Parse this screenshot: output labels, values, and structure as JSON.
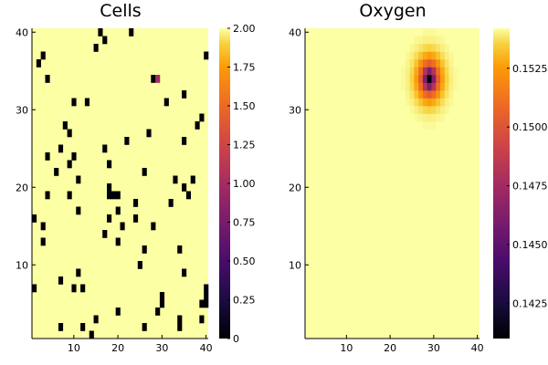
{
  "chart_data": [
    {
      "type": "heatmap",
      "title": "Cells",
      "xlabel": "",
      "ylabel": "",
      "xlim": [
        0.5,
        40.5
      ],
      "ylim": [
        0.5,
        40.5
      ],
      "x_ticks": [
        10,
        20,
        30,
        40
      ],
      "y_ticks": [
        10,
        20,
        30,
        40
      ],
      "colorbar": {
        "colormap": "inferno",
        "range": [
          0,
          2
        ],
        "ticks": [
          0,
          0.25,
          0.5,
          0.75,
          1.0,
          1.25,
          1.5,
          1.75,
          2.0
        ],
        "tick_labels": [
          "0",
          "0.25",
          "0.50",
          "0.75",
          "1.00",
          "1.25",
          "1.50",
          "1.75",
          "2.00"
        ]
      },
      "background_value": 2,
      "cells": [
        {
          "x": 16,
          "y": 40,
          "value": 0
        },
        {
          "x": 23,
          "y": 40,
          "value": 0
        },
        {
          "x": 17,
          "y": 39,
          "value": 0
        },
        {
          "x": 15,
          "y": 38,
          "value": 0
        },
        {
          "x": 3,
          "y": 37,
          "value": 0
        },
        {
          "x": 40,
          "y": 37,
          "value": 0
        },
        {
          "x": 2,
          "y": 36,
          "value": 0
        },
        {
          "x": 4,
          "y": 34,
          "value": 0
        },
        {
          "x": 28,
          "y": 34,
          "value": 0
        },
        {
          "x": 29,
          "y": 34,
          "value": 1
        },
        {
          "x": 35,
          "y": 32,
          "value": 0
        },
        {
          "x": 10,
          "y": 31,
          "value": 0
        },
        {
          "x": 13,
          "y": 31,
          "value": 0
        },
        {
          "x": 31,
          "y": 31,
          "value": 0
        },
        {
          "x": 39,
          "y": 29,
          "value": 0
        },
        {
          "x": 8,
          "y": 28,
          "value": 0
        },
        {
          "x": 38,
          "y": 28,
          "value": 0
        },
        {
          "x": 9,
          "y": 27,
          "value": 0
        },
        {
          "x": 27,
          "y": 27,
          "value": 0
        },
        {
          "x": 22,
          "y": 26,
          "value": 0
        },
        {
          "x": 35,
          "y": 26,
          "value": 0
        },
        {
          "x": 7,
          "y": 25,
          "value": 0
        },
        {
          "x": 17,
          "y": 25,
          "value": 0
        },
        {
          "x": 4,
          "y": 24,
          "value": 0
        },
        {
          "x": 10,
          "y": 24,
          "value": 0
        },
        {
          "x": 9,
          "y": 23,
          "value": 0
        },
        {
          "x": 18,
          "y": 23,
          "value": 0
        },
        {
          "x": 6,
          "y": 22,
          "value": 0
        },
        {
          "x": 26,
          "y": 22,
          "value": 0
        },
        {
          "x": 11,
          "y": 21,
          "value": 0
        },
        {
          "x": 33,
          "y": 21,
          "value": 0
        },
        {
          "x": 37,
          "y": 21,
          "value": 0
        },
        {
          "x": 35,
          "y": 20,
          "value": 0
        },
        {
          "x": 18,
          "y": 20,
          "value": 0
        },
        {
          "x": 4,
          "y": 19,
          "value": 0
        },
        {
          "x": 9,
          "y": 19,
          "value": 0
        },
        {
          "x": 18,
          "y": 19,
          "value": 0
        },
        {
          "x": 19,
          "y": 19,
          "value": 0
        },
        {
          "x": 20,
          "y": 19,
          "value": 0
        },
        {
          "x": 36,
          "y": 19,
          "value": 0
        },
        {
          "x": 24,
          "y": 18,
          "value": 0
        },
        {
          "x": 32,
          "y": 18,
          "value": 0
        },
        {
          "x": 11,
          "y": 17,
          "value": 0
        },
        {
          "x": 20,
          "y": 17,
          "value": 0
        },
        {
          "x": 1,
          "y": 16,
          "value": 0
        },
        {
          "x": 18,
          "y": 16,
          "value": 0
        },
        {
          "x": 24,
          "y": 16,
          "value": 0
        },
        {
          "x": 3,
          "y": 15,
          "value": 0
        },
        {
          "x": 21,
          "y": 15,
          "value": 0
        },
        {
          "x": 28,
          "y": 15,
          "value": 0
        },
        {
          "x": 17,
          "y": 14,
          "value": 0
        },
        {
          "x": 3,
          "y": 13,
          "value": 0
        },
        {
          "x": 20,
          "y": 13,
          "value": 0
        },
        {
          "x": 26,
          "y": 12,
          "value": 0
        },
        {
          "x": 34,
          "y": 12,
          "value": 0
        },
        {
          "x": 25,
          "y": 10,
          "value": 0
        },
        {
          "x": 11,
          "y": 9,
          "value": 0
        },
        {
          "x": 35,
          "y": 9,
          "value": 0
        },
        {
          "x": 7,
          "y": 8,
          "value": 0
        },
        {
          "x": 1,
          "y": 7,
          "value": 0
        },
        {
          "x": 10,
          "y": 7,
          "value": 0
        },
        {
          "x": 12,
          "y": 7,
          "value": 0
        },
        {
          "x": 40,
          "y": 7,
          "value": 0
        },
        {
          "x": 30,
          "y": 6,
          "value": 0
        },
        {
          "x": 40,
          "y": 6,
          "value": 0
        },
        {
          "x": 30,
          "y": 5,
          "value": 0
        },
        {
          "x": 39,
          "y": 5,
          "value": 0
        },
        {
          "x": 40,
          "y": 5,
          "value": 0
        },
        {
          "x": 20,
          "y": 4,
          "value": 0
        },
        {
          "x": 29,
          "y": 4,
          "value": 0
        },
        {
          "x": 34,
          "y": 3,
          "value": 0
        },
        {
          "x": 39,
          "y": 3,
          "value": 0
        },
        {
          "x": 7,
          "y": 2,
          "value": 0
        },
        {
          "x": 12,
          "y": 2,
          "value": 0
        },
        {
          "x": 15,
          "y": 3,
          "value": 0
        },
        {
          "x": 26,
          "y": 2,
          "value": 0
        },
        {
          "x": 34,
          "y": 2,
          "value": 0
        },
        {
          "x": 14,
          "y": 1,
          "value": 0
        }
      ]
    },
    {
      "type": "heatmap",
      "title": "Oxygen",
      "xlabel": "",
      "ylabel": "",
      "xlim": [
        0.5,
        40.5
      ],
      "ylim": [
        0.5,
        40.5
      ],
      "x_ticks": [
        10,
        20,
        30,
        40
      ],
      "y_ticks": [
        10,
        20,
        30,
        40
      ],
      "colorbar": {
        "colormap": "inferno",
        "range": [
          0.141,
          0.1542
        ],
        "ticks": [
          0.1425,
          0.145,
          0.1475,
          0.15,
          0.1525
        ],
        "tick_labels": [
          "0.1425",
          "0.1450",
          "0.1475",
          "0.1500",
          "0.1525"
        ]
      },
      "field": {
        "baseline": 0.1542,
        "minimum": 0.141,
        "minimum_at": {
          "x": 29,
          "y": 34
        },
        "decay_radius_cells": 1.7,
        "falloff_exponent": 1.3
      }
    }
  ]
}
